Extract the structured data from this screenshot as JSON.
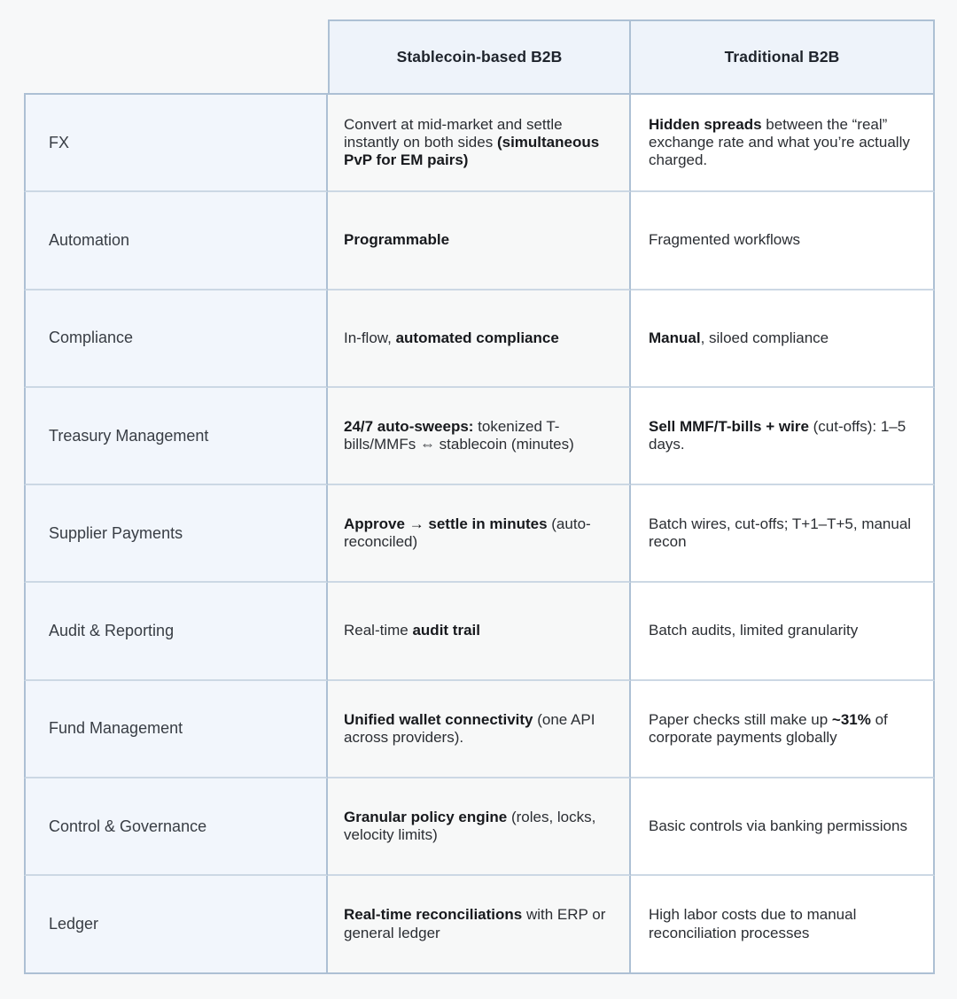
{
  "table": {
    "columns": [
      {
        "label": "Stablecoin-based B2B"
      },
      {
        "label": "Traditional B2B"
      }
    ],
    "rows": [
      {
        "label": "FX",
        "stablecoin": [
          {
            "t": "Convert at mid-market and settle instantly on both sides ",
            "b": false
          },
          {
            "t": "(simultaneous PvP for EM pairs)",
            "b": true
          }
        ],
        "traditional": [
          {
            "t": "Hidden spreads",
            "b": true
          },
          {
            "t": " between the “real” exchange rate and what you’re actually charged.",
            "b": false
          }
        ]
      },
      {
        "label": "Automation",
        "stablecoin": [
          {
            "t": "Programmable",
            "b": true
          }
        ],
        "traditional": [
          {
            "t": "Fragmented workflows",
            "b": false
          }
        ]
      },
      {
        "label": "Compliance",
        "stablecoin": [
          {
            "t": "In-flow, ",
            "b": false
          },
          {
            "t": "automated compliance",
            "b": true
          }
        ],
        "traditional": [
          {
            "t": "Manual",
            "b": true
          },
          {
            "t": ", siloed compliance",
            "b": false
          }
        ]
      },
      {
        "label": "Treasury Management",
        "stablecoin": [
          {
            "t": "24/7 auto-sweeps:",
            "b": true
          },
          {
            "t": " tokenized T-bills/MMFs ⇔ stablecoin (minutes)",
            "b": false
          }
        ],
        "traditional": [
          {
            "t": "Sell MMF/T-bills + wire",
            "b": true
          },
          {
            "t": " (cut-offs): 1–5 days.",
            "b": false
          }
        ]
      },
      {
        "label": "Supplier Payments",
        "stablecoin": [
          {
            "t": "Approve → settle in minutes",
            "b": true
          },
          {
            "t": " (auto-reconciled)",
            "b": false
          }
        ],
        "traditional": [
          {
            "t": "Batch wires, cut-offs; T+1–T+5, manual recon",
            "b": false
          }
        ]
      },
      {
        "label": "Audit & Reporting",
        "stablecoin": [
          {
            "t": "Real-time ",
            "b": false
          },
          {
            "t": "audit trail",
            "b": true
          }
        ],
        "traditional": [
          {
            "t": "Batch audits, limited granularity",
            "b": false
          }
        ]
      },
      {
        "label": "Fund Management",
        "stablecoin": [
          {
            "t": "Unified wallet connectivity",
            "b": true
          },
          {
            "t": " (one API across providers).",
            "b": false
          }
        ],
        "traditional": [
          {
            "t": "Paper checks still make up ",
            "b": false
          },
          {
            "t": "~31%",
            "b": true
          },
          {
            "t": " of corporate payments globally",
            "b": false
          }
        ]
      },
      {
        "label": "Control & Governance",
        "stablecoin": [
          {
            "t": "Granular policy engine",
            "b": true
          },
          {
            "t": " (roles, locks, velocity limits)",
            "b": false
          }
        ],
        "traditional": [
          {
            "t": "Basic controls via banking permissions",
            "b": false
          }
        ]
      },
      {
        "label": "Ledger",
        "stablecoin": [
          {
            "t": "Real-time reconciliations",
            "b": true
          },
          {
            "t": " with ERP or general ledger",
            "b": false
          }
        ],
        "traditional": [
          {
            "t": "High labor costs due to manual reconciliation processes",
            "b": false
          }
        ]
      }
    ],
    "colors": {
      "page_bg": "#f7f8f9",
      "header_bg": "#eef3fa",
      "label_column_bg": "#f2f6fc",
      "stablecoin_column_bg": "#f7f8f8",
      "traditional_column_bg": "#ffffff",
      "border_strong": "#adc0d4",
      "border_light": "#ccd8e4",
      "text": "#2b2e33"
    }
  },
  "chart_data": {
    "type": "table",
    "title": "",
    "columns": [
      "",
      "Stablecoin-based B2B",
      "Traditional B2B"
    ],
    "rows": [
      [
        "FX",
        "Convert at mid-market and settle instantly on both sides (simultaneous PvP for EM pairs)",
        "Hidden spreads between the “real” exchange rate and what you’re actually charged."
      ],
      [
        "Automation",
        "Programmable",
        "Fragmented workflows"
      ],
      [
        "Compliance",
        "In-flow, automated compliance",
        "Manual, siloed compliance"
      ],
      [
        "Treasury Management",
        "24/7 auto-sweeps: tokenized T-bills/MMFs ⇔ stablecoin (minutes)",
        "Sell MMF/T-bills + wire (cut-offs): 1–5 days."
      ],
      [
        "Supplier Payments",
        "Approve → settle in minutes (auto-reconciled)",
        "Batch wires, cut-offs; T+1–T+5, manual recon"
      ],
      [
        "Audit & Reporting",
        "Real-time audit trail",
        "Batch audits, limited granularity"
      ],
      [
        "Fund Management",
        "Unified wallet connectivity (one API across providers).",
        "Paper checks still make up ~31% of corporate payments globally"
      ],
      [
        "Control & Governance",
        "Granular policy engine (roles, locks, velocity limits)",
        "Basic controls via banking permissions"
      ],
      [
        "Ledger",
        "Real-time reconciliations with ERP or general ledger",
        "High labor costs due to manual reconciliation processes"
      ]
    ],
    "layout": "first column = row labels (light blue), middle column = stablecoin (light gray), right column = traditional (white); header spans only the two right columns"
  }
}
